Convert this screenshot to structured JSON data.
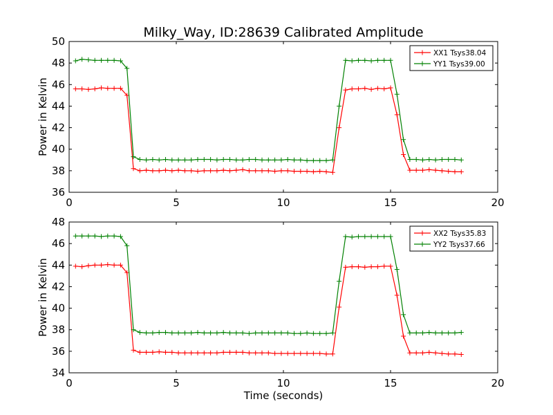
{
  "figure": {
    "title": "Milky_Way, ID:28639 Calibrated Amplitude",
    "xlabel": "Time (seconds)"
  },
  "colors": {
    "xx": "#ff0000",
    "yy": "#008000"
  },
  "chart_data": [
    {
      "type": "line",
      "ylabel": "Power in Kelvin",
      "xlim": [
        0,
        20
      ],
      "ylim": [
        36,
        50
      ],
      "xticks": [
        0,
        5,
        10,
        15,
        20
      ],
      "yticks": [
        36,
        38,
        40,
        42,
        44,
        46,
        48,
        50
      ],
      "legend_position": "top-right",
      "x": [
        0.3,
        0.6,
        0.9,
        1.2,
        1.5,
        1.8,
        2.1,
        2.4,
        2.7,
        3.0,
        3.3,
        3.6,
        3.9,
        4.2,
        4.5,
        4.8,
        5.1,
        5.4,
        5.7,
        6.0,
        6.3,
        6.6,
        6.9,
        7.2,
        7.5,
        7.8,
        8.1,
        8.4,
        8.7,
        9.0,
        9.3,
        9.6,
        9.9,
        10.2,
        10.5,
        10.8,
        11.1,
        11.4,
        11.7,
        12.0,
        12.3,
        12.6,
        12.9,
        13.2,
        13.5,
        13.8,
        14.1,
        14.4,
        14.7,
        15.0,
        15.3,
        15.6,
        15.9,
        16.2,
        16.5,
        16.8,
        17.1,
        17.4,
        17.7,
        18.0,
        18.3
      ],
      "series": [
        {
          "name": "XX1 Tsys38.04",
          "color_key": "xx",
          "values": [
            45.6,
            45.6,
            45.55,
            45.6,
            45.7,
            45.65,
            45.65,
            45.65,
            45.0,
            38.2,
            38.0,
            38.05,
            38.0,
            38.0,
            38.05,
            38.0,
            38.05,
            38.0,
            38.0,
            37.95,
            38.0,
            38.0,
            38.0,
            38.05,
            38.0,
            38.05,
            38.1,
            38.0,
            38.0,
            38.0,
            38.0,
            37.95,
            38.0,
            38.0,
            37.95,
            37.95,
            37.95,
            37.9,
            37.95,
            37.9,
            37.85,
            42.0,
            45.5,
            45.6,
            45.6,
            45.65,
            45.55,
            45.65,
            45.6,
            45.7,
            43.2,
            39.5,
            38.05,
            38.05,
            38.05,
            38.1,
            38.05,
            38.0,
            37.95,
            37.9,
            37.9
          ]
        },
        {
          "name": "YY1 Tsys39.00",
          "color_key": "yy",
          "values": [
            48.2,
            48.35,
            48.3,
            48.25,
            48.25,
            48.25,
            48.25,
            48.2,
            47.5,
            39.3,
            39.05,
            39.0,
            39.05,
            39.0,
            39.05,
            39.0,
            39.0,
            39.0,
            39.0,
            39.05,
            39.05,
            39.05,
            39.0,
            39.05,
            39.05,
            39.0,
            39.0,
            39.05,
            39.05,
            39.0,
            39.0,
            39.0,
            39.0,
            39.05,
            39.0,
            39.0,
            38.95,
            38.95,
            38.95,
            38.95,
            39.0,
            44.0,
            48.25,
            48.2,
            48.25,
            48.25,
            48.2,
            48.25,
            48.25,
            48.25,
            45.1,
            40.9,
            39.05,
            39.05,
            39.0,
            39.05,
            39.0,
            39.05,
            39.05,
            39.05,
            39.0
          ]
        }
      ]
    },
    {
      "type": "line",
      "ylabel": "Power in Kelvin",
      "xlabel": "Time (seconds)",
      "xlim": [
        0,
        20
      ],
      "ylim": [
        34,
        48
      ],
      "xticks": [
        0,
        5,
        10,
        15,
        20
      ],
      "yticks": [
        34,
        36,
        38,
        40,
        42,
        44,
        46,
        48
      ],
      "legend_position": "top-right",
      "x": [
        0.3,
        0.6,
        0.9,
        1.2,
        1.5,
        1.8,
        2.1,
        2.4,
        2.7,
        3.0,
        3.3,
        3.6,
        3.9,
        4.2,
        4.5,
        4.8,
        5.1,
        5.4,
        5.7,
        6.0,
        6.3,
        6.6,
        6.9,
        7.2,
        7.5,
        7.8,
        8.1,
        8.4,
        8.7,
        9.0,
        9.3,
        9.6,
        9.9,
        10.2,
        10.5,
        10.8,
        11.1,
        11.4,
        11.7,
        12.0,
        12.3,
        12.6,
        12.9,
        13.2,
        13.5,
        13.8,
        14.1,
        14.4,
        14.7,
        15.0,
        15.3,
        15.6,
        15.9,
        16.2,
        16.5,
        16.8,
        17.1,
        17.4,
        17.7,
        18.0,
        18.3
      ],
      "series": [
        {
          "name": "XX2 Tsys35.83",
          "color_key": "xx",
          "values": [
            43.9,
            43.85,
            43.95,
            44.0,
            44.0,
            44.05,
            44.0,
            44.0,
            43.3,
            36.1,
            35.9,
            35.9,
            35.9,
            35.95,
            35.9,
            35.9,
            35.85,
            35.85,
            35.85,
            35.85,
            35.85,
            35.85,
            35.85,
            35.9,
            35.9,
            35.9,
            35.9,
            35.85,
            35.85,
            35.85,
            35.85,
            35.8,
            35.8,
            35.8,
            35.8,
            35.8,
            35.8,
            35.8,
            35.8,
            35.75,
            35.75,
            40.1,
            43.8,
            43.85,
            43.85,
            43.8,
            43.85,
            43.85,
            43.9,
            43.9,
            41.2,
            37.4,
            35.85,
            35.85,
            35.85,
            35.9,
            35.85,
            35.8,
            35.75,
            35.75,
            35.7
          ]
        },
        {
          "name": "YY2 Tsys37.66",
          "color_key": "yy",
          "values": [
            46.7,
            46.7,
            46.7,
            46.7,
            46.65,
            46.7,
            46.7,
            46.65,
            45.8,
            38.0,
            37.75,
            37.7,
            37.7,
            37.75,
            37.75,
            37.7,
            37.7,
            37.7,
            37.7,
            37.75,
            37.7,
            37.7,
            37.7,
            37.75,
            37.7,
            37.7,
            37.7,
            37.65,
            37.7,
            37.7,
            37.7,
            37.7,
            37.7,
            37.7,
            37.65,
            37.65,
            37.7,
            37.65,
            37.65,
            37.65,
            37.7,
            42.5,
            46.65,
            46.6,
            46.65,
            46.65,
            46.65,
            46.65,
            46.65,
            46.65,
            43.6,
            39.4,
            37.7,
            37.7,
            37.7,
            37.75,
            37.7,
            37.7,
            37.7,
            37.7,
            37.75
          ]
        }
      ]
    }
  ]
}
